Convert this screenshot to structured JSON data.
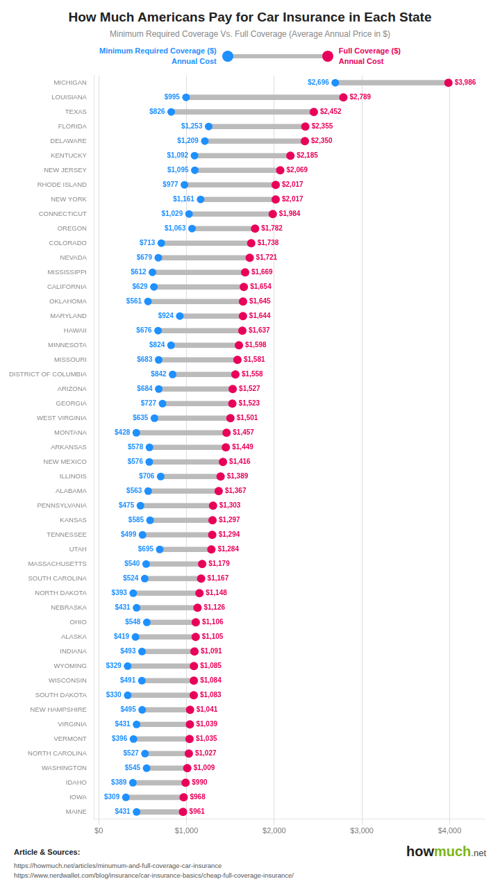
{
  "chart_data": {
    "type": "dumbbell",
    "title": "How Much Americans Pay for Car Insurance in Each State",
    "subtitle": "Minimum Required Coverage Vs. Full Coverage (Average Annual Price in $)",
    "orientation": "horizontal",
    "categories": [
      "MICHIGAN",
      "LOUISIANA",
      "TEXAS",
      "FLORIDA",
      "DELAWARE",
      "KENTUCKY",
      "NEW JERSEY",
      "RHODE ISLAND",
      "NEW YORK",
      "CONNECTICUT",
      "OREGON",
      "COLORADO",
      "NEVADA",
      "MISSISSIPPI",
      "CALIFORNIA",
      "OKLAHOMA",
      "MARYLAND",
      "HAWAII",
      "MINNESOTA",
      "MISSOURI",
      "DISTRICT OF COLUMBIA",
      "ARIZONA",
      "GEORGIA",
      "WEST VIRGINIA",
      "MONTANA",
      "ARKANSAS",
      "NEW MEXICO",
      "ILLINOIS",
      "ALABAMA",
      "PENNSYLVANIA",
      "KANSAS",
      "TENNESSEE",
      "UTAH",
      "MASSACHUSETTS",
      "SOUTH CAROLINA",
      "NORTH DAKOTA",
      "NEBRASKA",
      "OHIO",
      "ALASKA",
      "INDIANA",
      "WYOMING",
      "WISCONSIN",
      "SOUTH DAKOTA",
      "NEW HAMPSHIRE",
      "VIRGINIA",
      "VERMONT",
      "NORTH CAROLINA",
      "WASHINGTON",
      "IDAHO",
      "IOWA",
      "MAINE"
    ],
    "series": [
      {
        "name": "Minimum Required Coverage ($)\nAnnual Cost",
        "color": "#1E90FF",
        "values": [
          2696,
          995,
          826,
          1253,
          1209,
          1092,
          1095,
          977,
          1161,
          1029,
          1063,
          713,
          679,
          612,
          629,
          561,
          924,
          676,
          824,
          683,
          842,
          684,
          727,
          635,
          428,
          578,
          576,
          706,
          563,
          475,
          585,
          499,
          695,
          540,
          524,
          393,
          431,
          548,
          419,
          493,
          329,
          491,
          330,
          495,
          431,
          396,
          527,
          545,
          389,
          309,
          431
        ],
        "value_labels": [
          "$2,696",
          "$995",
          "$826",
          "$1,253",
          "$1,209",
          "$1,092",
          "$1,095",
          "$977",
          "$1,161",
          "$1,029",
          "$1,063",
          "$713",
          "$679",
          "$612",
          "$629",
          "$561",
          "$924",
          "$676",
          "$824",
          "$683",
          "$842",
          "$684",
          "$727",
          "$635",
          "$428",
          "$578",
          "$576",
          "$706",
          "$563",
          "$475",
          "$585",
          "$499",
          "$695",
          "$540",
          "$524",
          "$393",
          "$431",
          "$548",
          "$419",
          "$493",
          "$329",
          "$491",
          "$330",
          "$495",
          "$431",
          "$396",
          "$527",
          "$545",
          "$389",
          "$309",
          "$431"
        ]
      },
      {
        "name": "Full Coverage ($)\nAnnual Cost",
        "color": "#E8005A",
        "values": [
          3986,
          2789,
          2452,
          2355,
          2350,
          2185,
          2069,
          2017,
          2017,
          1984,
          1782,
          1738,
          1721,
          1669,
          1654,
          1645,
          1644,
          1637,
          1598,
          1581,
          1558,
          1527,
          1523,
          1501,
          1457,
          1449,
          1416,
          1389,
          1367,
          1303,
          1297,
          1294,
          1284,
          1179,
          1167,
          1148,
          1126,
          1106,
          1105,
          1091,
          1085,
          1084,
          1083,
          1041,
          1039,
          1035,
          1027,
          1009,
          990,
          968,
          961
        ],
        "value_labels": [
          "$3,986",
          "$2,789",
          "$2,452",
          "$2,355",
          "$2,350",
          "$2,185",
          "$2,069",
          "$2,017",
          "$2,017",
          "$1,984",
          "$1,782",
          "$1,738",
          "$1,721",
          "$1,669",
          "$1,654",
          "$1,645",
          "$1,644",
          "$1,637",
          "$1,598",
          "$1,581",
          "$1,558",
          "$1,527",
          "$1,523",
          "$1,501",
          "$1,457",
          "$1,449",
          "$1,416",
          "$1,389",
          "$1,367",
          "$1,303",
          "$1,297",
          "$1,294",
          "$1,284",
          "$1,179",
          "$1,167",
          "$1,148",
          "$1,126",
          "$1,106",
          "$1,105",
          "$1,091",
          "$1,085",
          "$1,084",
          "$1,083",
          "$1,041",
          "$1,039",
          "$1,035",
          "$1,027",
          "$1,009",
          "$990",
          "$968",
          "$961"
        ]
      }
    ],
    "color": "#BBBBBB",
    "xlim": [
      -50,
      4400
    ],
    "xticks": [
      {
        "value": 0,
        "label": "$0"
      },
      {
        "value": 1000,
        "label": "$1,000"
      },
      {
        "value": 2000,
        "label": "$2,000"
      },
      {
        "value": 3000,
        "label": "$3,000"
      },
      {
        "value": 4000,
        "label": "$4,000"
      }
    ],
    "grid": true,
    "data_labels": true,
    "legend": "top",
    "annotations": [
      "Article & Sources:",
      "https://howmuch.net/articles/minumum-and-full-coverage-car-insurance",
      "https://www.nerdwallet.com/blog/insurance/car-insurance-basics/cheap-full-coverage-insurance/",
      "how",
      "much",
      ".net"
    ]
  }
}
